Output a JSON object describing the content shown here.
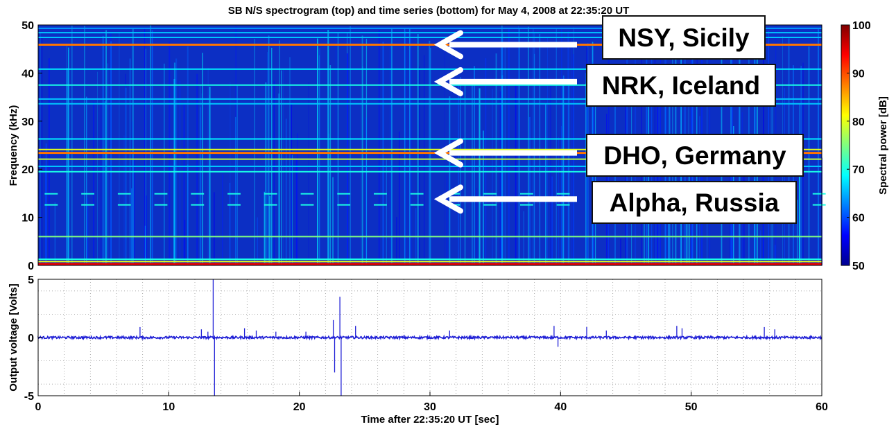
{
  "figure": {
    "title": "SB N/S spectrogram (top) and time series (bottom) for May 4, 2008 at 22:35:20 UT"
  },
  "chart_data": [
    {
      "type": "heatmap",
      "title": "SB N/S spectrogram (top) and time series (bottom) for May 4, 2008 at 22:35:20 UT",
      "xlabel": "",
      "ylabel": "Frequency (kHz)",
      "xlim": [
        0,
        60
      ],
      "ylim": [
        0,
        50
      ],
      "ytick_labels": [
        "0",
        "10",
        "20",
        "30",
        "40",
        "50"
      ],
      "colormap": "jet",
      "colorbar": {
        "label": "Spectral power [dB]",
        "range": [
          50,
          100
        ],
        "tick_labels": [
          "50",
          "60",
          "70",
          "80",
          "90",
          "100"
        ]
      },
      "background_power_db": 55,
      "transmitter_lines": [
        {
          "freq_khz": 0.3,
          "power_db": 95
        },
        {
          "freq_khz": 0.8,
          "power_db": 80
        },
        {
          "freq_khz": 1.3,
          "power_db": 70
        },
        {
          "freq_khz": 6.0,
          "power_db": 75
        },
        {
          "freq_khz": 12.6,
          "power_db": 70,
          "segmented": true
        },
        {
          "freq_khz": 14.9,
          "power_db": 70,
          "segmented": true
        },
        {
          "freq_khz": 19.5,
          "power_db": 70
        },
        {
          "freq_khz": 20.6,
          "power_db": 66
        },
        {
          "freq_khz": 22.1,
          "power_db": 78
        },
        {
          "freq_khz": 23.4,
          "power_db": 88
        },
        {
          "freq_khz": 24.1,
          "power_db": 80
        },
        {
          "freq_khz": 26.3,
          "power_db": 68
        },
        {
          "freq_khz": 33.6,
          "power_db": 66
        },
        {
          "freq_khz": 34.6,
          "power_db": 66
        },
        {
          "freq_khz": 37.5,
          "power_db": 70
        },
        {
          "freq_khz": 40.8,
          "power_db": 68
        },
        {
          "freq_khz": 45.9,
          "power_db": 88
        },
        {
          "freq_khz": 47.4,
          "power_db": 66
        },
        {
          "freq_khz": 48.4,
          "power_db": 66
        },
        {
          "freq_khz": 49.3,
          "power_db": 64
        }
      ],
      "annotations": [
        {
          "text": "NSY, Sicily",
          "freq_khz": 45.9
        },
        {
          "text": "NRK, Iceland",
          "freq_khz": 38.2
        },
        {
          "text": "DHO, Germany",
          "freq_khz": 23.4
        },
        {
          "text": "Alpha, Russia",
          "freq_khz": 13.8
        }
      ]
    },
    {
      "type": "line",
      "xlabel": "Time after 22:35:20 UT [sec]",
      "ylabel": "Output voltage [Volts]",
      "xlim": [
        0,
        60
      ],
      "ylim": [
        -5,
        5
      ],
      "xtick_labels": [
        "0",
        "10",
        "20",
        "30",
        "40",
        "50",
        "60"
      ],
      "ytick_labels": [
        "-5",
        "0",
        "5"
      ],
      "grid": true,
      "series_color": "#1f1fd6",
      "baseline_noise_volts": 0.1,
      "spikes": [
        {
          "t": 7.8,
          "v": 0.9
        },
        {
          "t": 12.5,
          "v": 0.7
        },
        {
          "t": 13.0,
          "v": 0.5
        },
        {
          "t": 13.4,
          "v": 5.0
        },
        {
          "t": 13.5,
          "v": -5.0
        },
        {
          "t": 15.8,
          "v": 0.8
        },
        {
          "t": 16.7,
          "v": 0.6
        },
        {
          "t": 18.2,
          "v": 0.5
        },
        {
          "t": 20.5,
          "v": 0.5
        },
        {
          "t": 22.6,
          "v": 1.5
        },
        {
          "t": 22.7,
          "v": -3.0
        },
        {
          "t": 23.1,
          "v": 3.5
        },
        {
          "t": 23.2,
          "v": -5.0
        },
        {
          "t": 24.3,
          "v": 1.0
        },
        {
          "t": 31.5,
          "v": 0.6
        },
        {
          "t": 39.5,
          "v": 1.0
        },
        {
          "t": 39.8,
          "v": -0.8
        },
        {
          "t": 42.0,
          "v": 0.9
        },
        {
          "t": 43.5,
          "v": 0.6
        },
        {
          "t": 48.9,
          "v": 1.0
        },
        {
          "t": 49.3,
          "v": 0.8
        },
        {
          "t": 55.6,
          "v": 0.9
        },
        {
          "t": 56.4,
          "v": 0.7
        }
      ]
    }
  ]
}
